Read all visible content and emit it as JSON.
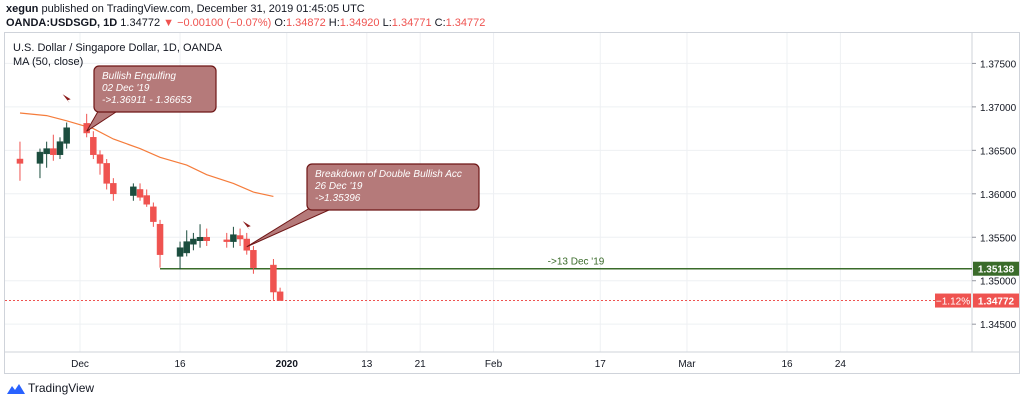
{
  "header": {
    "publisher_user": "xegun",
    "publisher_text": "published on TradingView.com, December 31, 2019 01:45:05 UTC",
    "symbol": "OANDA:USDSGD, 1D",
    "last": "1.34772",
    "change_arrow": "▼",
    "change": "−0.00100 (−0.07%)",
    "o_label": "O:",
    "o_value": "1.34872",
    "h_label": "H:",
    "h_value": "1.34920",
    "l_label": "L:",
    "l_value": "1.34771",
    "c_label": "C:",
    "c_value": "1.34772"
  },
  "footer": {
    "brand": "TradingView",
    "logo_icon": "tradingview-logo-icon"
  },
  "colors": {
    "up": "#26a69a",
    "down": "#ef5350",
    "up_body": "#1b4d3e",
    "ma": "#f57c3b",
    "support_line": "#3a6b2a",
    "price_line": "#ef5350",
    "callout_fill": "#b57a7a",
    "callout_stroke": "#6e1616"
  },
  "chart_data": {
    "type": "candlestick",
    "title": "U.S. Dollar / Singapore Dollar, 1D, OANDA",
    "indicator": "MA (50, close)",
    "y_ticks": [
      "1.37500",
      "1.37000",
      "1.36500",
      "1.36000",
      "1.35500",
      "1.35000",
      "1.34500"
    ],
    "ylim": [
      1.3418,
      1.3785
    ],
    "x_ticks": [
      {
        "label": "Dec",
        "date": "2019-12-01"
      },
      {
        "label": "16",
        "date": "2019-12-16"
      },
      {
        "label": "2020",
        "date": "2020-01-01"
      },
      {
        "label": "13",
        "date": "2020-01-13"
      },
      {
        "label": "21",
        "date": "2020-01-21"
      },
      {
        "label": "Feb",
        "date": "2020-02-01"
      },
      {
        "label": "17",
        "date": "2020-02-17"
      },
      {
        "label": "Mar",
        "date": "2020-03-01"
      },
      {
        "label": "16",
        "date": "2020-03-16"
      },
      {
        "label": "24",
        "date": "2020-03-24"
      }
    ],
    "candles": [
      {
        "date": "2019-11-22",
        "o": 1.364,
        "h": 1.366,
        "l": 1.3615,
        "c": 1.3635
      },
      {
        "date": "2019-11-25",
        "o": 1.3635,
        "h": 1.3652,
        "l": 1.3618,
        "c": 1.3648
      },
      {
        "date": "2019-11-26",
        "o": 1.3646,
        "h": 1.366,
        "l": 1.363,
        "c": 1.3652
      },
      {
        "date": "2019-11-27",
        "o": 1.3652,
        "h": 1.3668,
        "l": 1.3638,
        "c": 1.3645
      },
      {
        "date": "2019-11-28",
        "o": 1.3645,
        "h": 1.3665,
        "l": 1.364,
        "c": 1.366
      },
      {
        "date": "2019-11-29",
        "o": 1.3658,
        "h": 1.3682,
        "l": 1.3652,
        "c": 1.3676
      },
      {
        "date": "2019-12-02",
        "o": 1.3681,
        "h": 1.3692,
        "l": 1.3665,
        "c": 1.367
      },
      {
        "date": "2019-12-03",
        "o": 1.3665,
        "h": 1.3672,
        "l": 1.364,
        "c": 1.3645
      },
      {
        "date": "2019-12-04",
        "o": 1.3645,
        "h": 1.365,
        "l": 1.3622,
        "c": 1.3635
      },
      {
        "date": "2019-12-05",
        "o": 1.3635,
        "h": 1.364,
        "l": 1.3605,
        "c": 1.3612
      },
      {
        "date": "2019-12-06",
        "o": 1.3612,
        "h": 1.3618,
        "l": 1.3592,
        "c": 1.36
      },
      {
        "date": "2019-12-09",
        "o": 1.3598,
        "h": 1.3612,
        "l": 1.3592,
        "c": 1.3608
      },
      {
        "date": "2019-12-10",
        "o": 1.3605,
        "h": 1.3612,
        "l": 1.3592,
        "c": 1.3596
      },
      {
        "date": "2019-12-11",
        "o": 1.3598,
        "h": 1.3605,
        "l": 1.3585,
        "c": 1.3588
      },
      {
        "date": "2019-12-12",
        "o": 1.3585,
        "h": 1.359,
        "l": 1.3562,
        "c": 1.3568
      },
      {
        "date": "2019-12-13",
        "o": 1.3565,
        "h": 1.357,
        "l": 1.3515,
        "c": 1.353
      },
      {
        "date": "2019-12-16",
        "o": 1.3528,
        "h": 1.3545,
        "l": 1.3513,
        "c": 1.3538
      },
      {
        "date": "2019-12-17",
        "o": 1.3532,
        "h": 1.3558,
        "l": 1.3528,
        "c": 1.3545
      },
      {
        "date": "2019-12-18",
        "o": 1.3542,
        "h": 1.3555,
        "l": 1.3535,
        "c": 1.3548
      },
      {
        "date": "2019-12-19",
        "o": 1.3546,
        "h": 1.3565,
        "l": 1.3538,
        "c": 1.355
      },
      {
        "date": "2019-12-20",
        "o": 1.355,
        "h": 1.356,
        "l": 1.354,
        "c": 1.3546
      },
      {
        "date": "2019-12-23",
        "o": 1.3547,
        "h": 1.3555,
        "l": 1.3538,
        "c": 1.3545
      },
      {
        "date": "2019-12-24",
        "o": 1.3545,
        "h": 1.3562,
        "l": 1.3538,
        "c": 1.3553
      },
      {
        "date": "2019-12-25",
        "o": 1.3552,
        "h": 1.356,
        "l": 1.354,
        "c": 1.3548
      },
      {
        "date": "2019-12-26",
        "o": 1.3548,
        "h": 1.3555,
        "l": 1.353,
        "c": 1.3535
      },
      {
        "date": "2019-12-27",
        "o": 1.3535,
        "h": 1.354,
        "l": 1.3508,
        "c": 1.3515
      },
      {
        "date": "2019-12-30",
        "o": 1.3518,
        "h": 1.3525,
        "l": 1.3478,
        "c": 1.3487
      },
      {
        "date": "2019-12-31",
        "o": 1.34872,
        "h": 1.3492,
        "l": 1.34771,
        "c": 1.34772
      }
    ],
    "ma_series": {
      "name": "MA (50, close)",
      "points": [
        {
          "date": "2019-11-22",
          "v": 1.3693
        },
        {
          "date": "2019-11-26",
          "v": 1.369
        },
        {
          "date": "2019-11-29",
          "v": 1.3684
        },
        {
          "date": "2019-12-03",
          "v": 1.3675
        },
        {
          "date": "2019-12-06",
          "v": 1.3663
        },
        {
          "date": "2019-12-10",
          "v": 1.3652
        },
        {
          "date": "2019-12-13",
          "v": 1.3642
        },
        {
          "date": "2019-12-17",
          "v": 1.3633
        },
        {
          "date": "2019-12-20",
          "v": 1.3622
        },
        {
          "date": "2019-12-24",
          "v": 1.3612
        },
        {
          "date": "2019-12-27",
          "v": 1.3602
        },
        {
          "date": "2019-12-30",
          "v": 1.3597
        }
      ]
    },
    "support_line": {
      "label": "->13 Dec '19",
      "value": 1.35138,
      "from_date": "2019-12-13",
      "price_label": "1.35138"
    },
    "last_price": {
      "value": 1.34772,
      "price_label": "1.34772",
      "change_label": "−1.12%"
    },
    "annotations": [
      {
        "lines": [
          "Bullish Engulfing",
          "02 Dec '19",
          "->1.36911 - 1.36653"
        ],
        "anchor_date": "2019-12-02",
        "anchor_value": 1.3672
      },
      {
        "lines": [
          "Breakdown of Double Bullish Acc",
          "26 Dec '19",
          "->1.35396"
        ],
        "anchor_date": "2019-12-26",
        "anchor_value": 1.3539
      }
    ],
    "markers": [
      {
        "date": "2019-11-29",
        "value": 1.371,
        "icon": "bullish-arrow-marker-icon"
      },
      {
        "date": "2019-12-26",
        "value": 1.3564,
        "icon": "bearish-arrow-marker-icon"
      }
    ],
    "grid": true
  }
}
